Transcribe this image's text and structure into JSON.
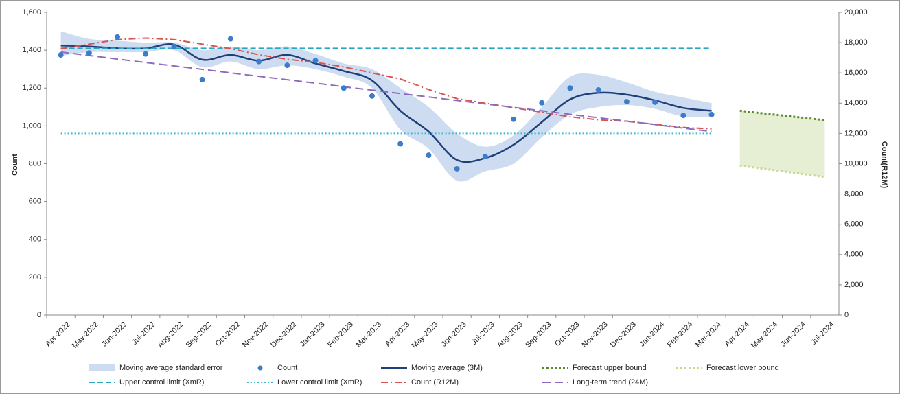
{
  "chart_data": {
    "type": "combo",
    "categories": [
      "Apr-2022",
      "May-2022",
      "Jun-2022",
      "Jul-2022",
      "Aug-2022",
      "Sep-2022",
      "Oct-2022",
      "Nov-2022",
      "Dec-2022",
      "Jan-2023",
      "Feb-2023",
      "Mar-2023",
      "Apr-2023",
      "May-2023",
      "Jun-2023",
      "Jul-2023",
      "Aug-2023",
      "Sep-2023",
      "Oct-2023",
      "Nov-2023",
      "Dec-2023",
      "Jan-2024",
      "Feb-2024",
      "Mar-2024",
      "Apr-2024",
      "May-2024",
      "Jun-2024",
      "Jul-2024"
    ],
    "ylabel": "Count",
    "y2label": "Count(R12M)",
    "ylim": [
      0,
      1600
    ],
    "yticks": [
      0,
      200,
      400,
      600,
      800,
      {
        "value": 1000,
        "label": "1,000"
      },
      {
        "value": 1200,
        "label": "1,200"
      },
      {
        "value": 1400,
        "label": "1,400"
      },
      {
        "value": 1600,
        "label": "1,600"
      }
    ],
    "y2lim": [
      0,
      20000
    ],
    "y2ticks": [
      0,
      {
        "value": 2000,
        "label": "2,000"
      },
      {
        "value": 4000,
        "label": "4,000"
      },
      {
        "value": 6000,
        "label": "6,000"
      },
      {
        "value": 8000,
        "label": "8,000"
      },
      {
        "value": 10000,
        "label": "10,000"
      },
      {
        "value": 12000,
        "label": "12,000"
      },
      {
        "value": 14000,
        "label": "14,000"
      },
      {
        "value": 16000,
        "label": "16,000"
      },
      {
        "value": 18000,
        "label": "18,000"
      },
      {
        "value": 20000,
        "label": "20,000"
      }
    ],
    "series": [
      {
        "name": "Moving average standard error",
        "kind": "band",
        "color": "#cddcf0",
        "lower": [
          1370,
          1390,
          1390,
          1390,
          1400,
          1310,
          1340,
          1300,
          1320,
          1300,
          1260,
          1200,
          980,
          880,
          710,
          760,
          800,
          940,
          1060,
          1100,
          1110,
          1090,
          1050,
          1050,
          null,
          null,
          null,
          null
        ],
        "upper": [
          1500,
          1460,
          1450,
          1440,
          1440,
          1400,
          1420,
          1400,
          1420,
          1380,
          1330,
          1300,
          1200,
          1100,
          960,
          890,
          950,
          1100,
          1260,
          1270,
          1230,
          1180,
          1150,
          1120,
          null,
          null,
          null,
          null
        ]
      },
      {
        "name": "Count",
        "kind": "scatter",
        "color": "#3d7cc9",
        "values": [
          1375,
          1385,
          1470,
          1380,
          1420,
          1245,
          1460,
          1340,
          1320,
          1345,
          1200,
          1158,
          905,
          845,
          773,
          838,
          1035,
          1122,
          1200,
          1190,
          1128,
          1125,
          1055,
          1060,
          null,
          null,
          null,
          null
        ]
      },
      {
        "name": "Moving average (3M)",
        "kind": "line",
        "smooth": true,
        "color": "#1f3f7a",
        "width": 2.5,
        "dash": "",
        "values": [
          1425,
          1420,
          1410,
          1410,
          1430,
          1350,
          1375,
          1345,
          1375,
          1330,
          1290,
          1240,
          1080,
          970,
          820,
          830,
          900,
          1020,
          1140,
          1175,
          1165,
          1135,
          1095,
          1080,
          null,
          null,
          null,
          null
        ]
      },
      {
        "name": "Forecast upper bound",
        "kind": "line",
        "color": "#5b8a2b",
        "width": 3,
        "dash": "3,3",
        "fill_to": "Forecast lower bound",
        "fill": "#e6eed3",
        "values": [
          null,
          null,
          null,
          null,
          null,
          null,
          null,
          null,
          null,
          null,
          null,
          null,
          null,
          null,
          null,
          null,
          null,
          null,
          null,
          null,
          null,
          null,
          null,
          null,
          1080,
          1063,
          1047,
          1030
        ]
      },
      {
        "name": "Forecast lower bound",
        "kind": "line",
        "color": "#c7d98c",
        "width": 3,
        "dash": "3,3",
        "values": [
          null,
          null,
          null,
          null,
          null,
          null,
          null,
          null,
          null,
          null,
          null,
          null,
          null,
          null,
          null,
          null,
          null,
          null,
          null,
          null,
          null,
          null,
          null,
          null,
          790,
          770,
          750,
          730
        ]
      },
      {
        "name": "Upper control limit (XmR)",
        "kind": "line",
        "color": "#2aa7c2",
        "width": 2,
        "dash": "8,4",
        "values": [
          1410,
          1410,
          1410,
          1410,
          1410,
          1410,
          1410,
          1410,
          1410,
          1410,
          1410,
          1410,
          1410,
          1410,
          1410,
          1410,
          1410,
          1410,
          1410,
          1410,
          1410,
          1410,
          1410,
          1410,
          null,
          null,
          null,
          null
        ]
      },
      {
        "name": "Lower control limit (XmR)",
        "kind": "line",
        "color": "#33b6ca",
        "width": 2,
        "dash": "2,3",
        "values": [
          960,
          960,
          960,
          960,
          960,
          960,
          960,
          960,
          960,
          960,
          960,
          960,
          960,
          960,
          960,
          960,
          960,
          960,
          960,
          960,
          960,
          960,
          960,
          960,
          null,
          null,
          null,
          null
        ]
      },
      {
        "name": "Count (R12M)",
        "kind": "line",
        "axis": "y2",
        "color": "#d9534f",
        "width": 2,
        "dash": "10,4,2,4",
        "values": [
          17600,
          17900,
          18200,
          18300,
          18200,
          17900,
          17600,
          17200,
          16900,
          16700,
          16400,
          16000,
          15600,
          14900,
          14300,
          14000,
          13700,
          13400,
          13100,
          12900,
          12800,
          12600,
          12400,
          12300,
          null,
          null,
          null,
          null
        ]
      },
      {
        "name": "Long-term trend (24M)",
        "kind": "line",
        "color": "#8c6bbd",
        "width": 2,
        "dash": "12,6",
        "values": [
          1390,
          1372,
          1353,
          1335,
          1317,
          1299,
          1280,
          1262,
          1244,
          1226,
          1207,
          1189,
          1171,
          1153,
          1134,
          1116,
          1098,
          1080,
          1061,
          1043,
          1025,
          1007,
          988,
          970,
          null,
          null,
          null,
          null
        ]
      }
    ]
  }
}
